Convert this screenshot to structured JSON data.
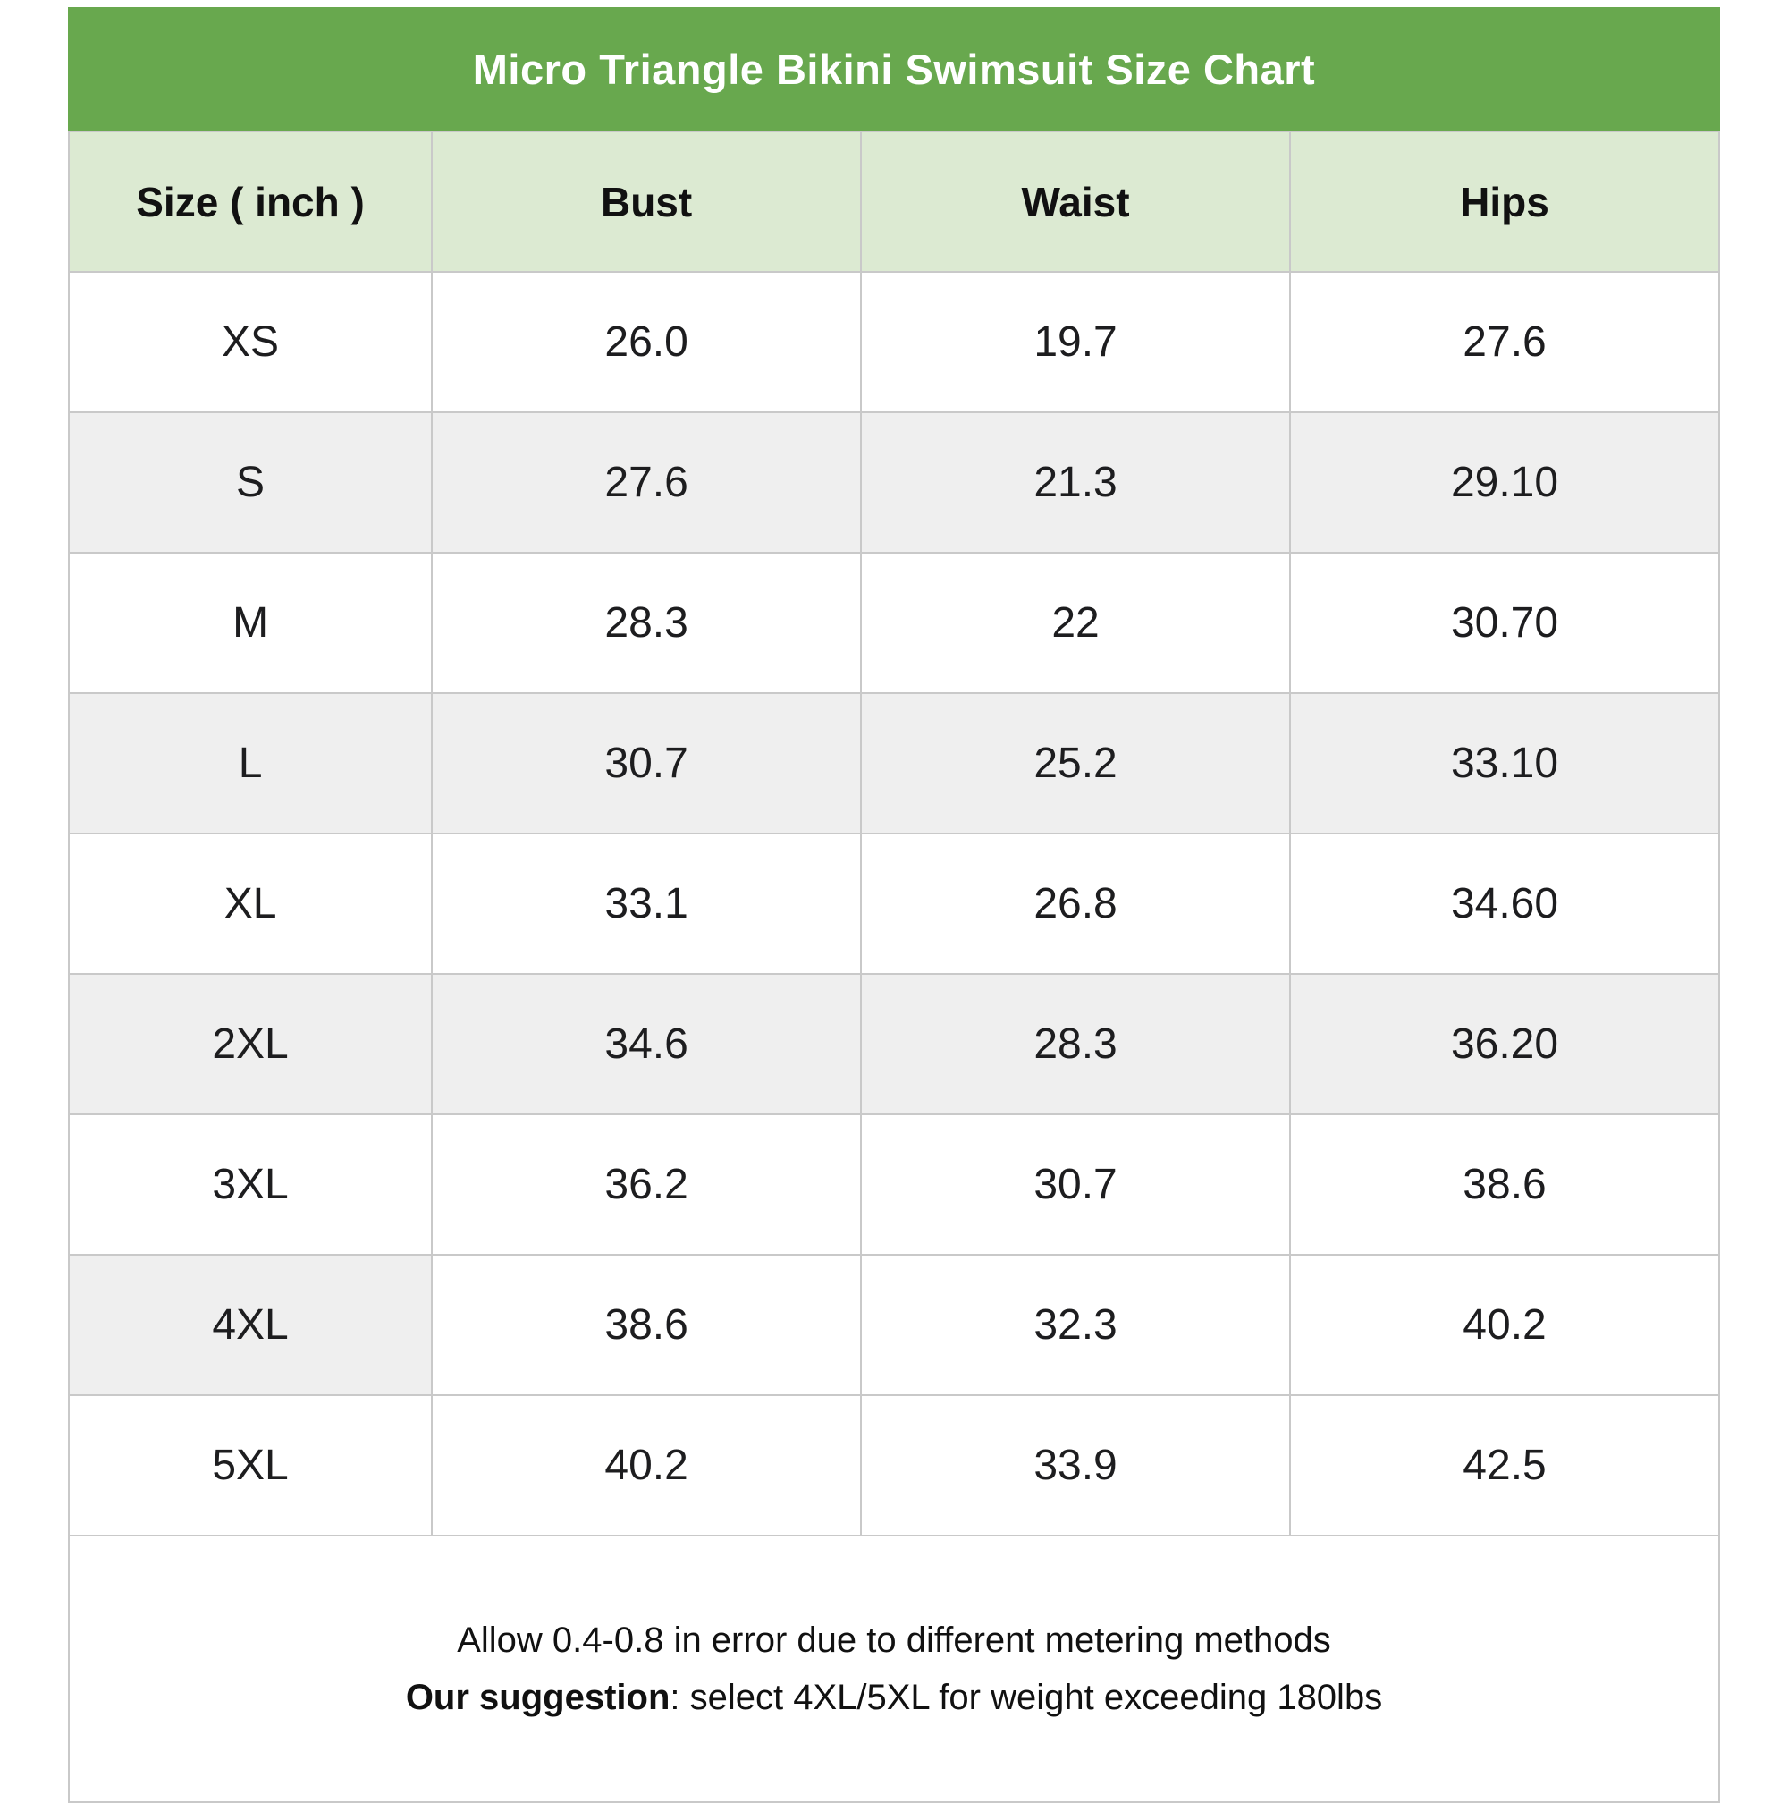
{
  "chart_data": {
    "type": "table",
    "title": "Micro Triangle Bikini Swimsuit Size Chart",
    "unit_note": "inch",
    "columns": [
      "Size ( inch )",
      "Bust",
      "Waist",
      "Hips"
    ],
    "rows": [
      {
        "size": "XS",
        "bust": "26.0",
        "waist": "19.7",
        "hips": "27.6",
        "shade": "none"
      },
      {
        "size": "S",
        "bust": "27.6",
        "waist": "21.3",
        "hips": "29.10",
        "shade": "full"
      },
      {
        "size": "M",
        "bust": "28.3",
        "waist": "22",
        "hips": "30.70",
        "shade": "none"
      },
      {
        "size": "L",
        "bust": "30.7",
        "waist": "25.2",
        "hips": "33.10",
        "shade": "full"
      },
      {
        "size": "XL",
        "bust": "33.1",
        "waist": "26.8",
        "hips": "34.60",
        "shade": "none"
      },
      {
        "size": "2XL",
        "bust": "34.6",
        "waist": "28.3",
        "hips": "36.20",
        "shade": "full"
      },
      {
        "size": "3XL",
        "bust": "36.2",
        "waist": "30.7",
        "hips": "38.6",
        "shade": "none"
      },
      {
        "size": "4XL",
        "bust": "38.6",
        "waist": "32.3",
        "hips": "40.2",
        "shade": "first-only"
      },
      {
        "size": "5XL",
        "bust": "40.2",
        "waist": "33.9",
        "hips": "42.5",
        "shade": "none"
      }
    ]
  },
  "footer": {
    "line1": "Allow 0.4-0.8 in error due to different metering methods",
    "line2_bold": "Our suggestion",
    "line2_rest": ": select 4XL/5XL for weight exceeding 180lbs"
  },
  "colors": {
    "title_bar_green": "#68a84e",
    "header_row_green": "#dcead2",
    "stripe_gray": "#efefef",
    "border_gray": "#c9c9c9",
    "title_text": "#ffffff",
    "body_text": "#1d1d1f"
  }
}
